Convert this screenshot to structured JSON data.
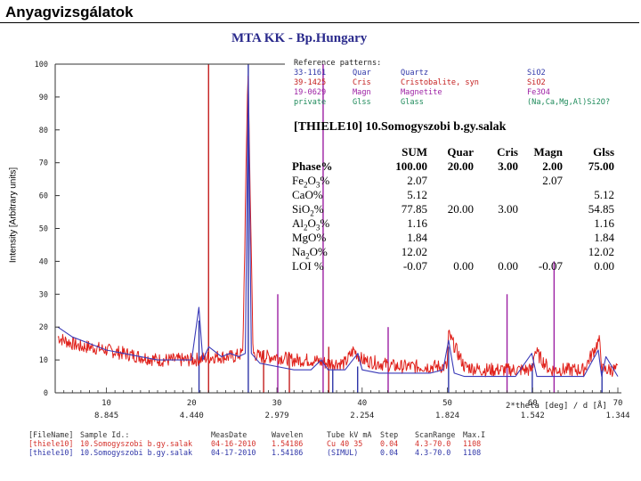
{
  "slide": {
    "title": "Anyagvizsgálatok"
  },
  "instrument": {
    "lab": "MTA KK - Bp.Hungary"
  },
  "chart_data": {
    "type": "line",
    "ylabel": "Intensity [Arbitrary units]",
    "xlabel": "2*theta [deg] / d [Å]",
    "xlim": [
      4.3,
      70
    ],
    "ylim": [
      0,
      100
    ],
    "x_ticks": [
      10,
      20,
      30,
      40,
      50,
      60,
      70
    ],
    "x_ticks_d": [
      "8.845",
      "4.440",
      "2.979",
      "2.254",
      "1.824",
      "1.542",
      "1.344"
    ],
    "y_ticks": [
      0,
      10,
      20,
      30,
      40,
      50,
      60,
      70,
      80,
      90,
      100
    ],
    "grid": false,
    "series": [
      {
        "name": "thiele10",
        "x": [
          4.3,
          5,
          6,
          7,
          8,
          10,
          12,
          14,
          16,
          18,
          20,
          21.5,
          22.5,
          24,
          25,
          26,
          26.6,
          27.2,
          28,
          30,
          32,
          34,
          36,
          38,
          39,
          40,
          42,
          44,
          46,
          48,
          50,
          50.1,
          52,
          54,
          56,
          58,
          60,
          60.2,
          62,
          64,
          66,
          67.8,
          68.2,
          70
        ],
        "y": [
          17,
          16,
          15,
          14,
          14,
          13,
          12,
          11,
          10,
          10,
          10,
          10.5,
          11,
          11,
          11,
          12,
          100,
          12,
          11,
          11,
          10,
          10,
          9,
          9,
          13,
          10,
          9,
          8,
          8,
          8,
          8,
          18,
          8,
          7,
          7,
          7,
          7,
          13,
          7,
          7,
          7,
          16,
          7,
          7
        ]
      },
      {
        "name": "thiele10",
        "x": [
          4.3,
          6,
          8,
          10,
          12,
          14,
          16,
          18,
          20,
          20.85,
          21.3,
          22,
          23.5,
          24.5,
          25.5,
          26.3,
          26.64,
          27,
          28,
          30,
          32,
          34,
          35.2,
          36,
          38,
          39.5,
          40,
          42,
          44,
          46,
          48,
          49.5,
          50.14,
          50.8,
          52,
          54,
          56,
          58,
          59.9,
          60.5,
          62,
          64,
          66,
          67.7,
          68.1,
          68.6,
          70
        ],
        "y": [
          20,
          17,
          15,
          13,
          12,
          11,
          10,
          10,
          10,
          26,
          10,
          14,
          11,
          12,
          11,
          12,
          97,
          12,
          9,
          8,
          7,
          7,
          10,
          7,
          7,
          12,
          7,
          6,
          6,
          6,
          6,
          7,
          16,
          6,
          5,
          5,
          5,
          5,
          12,
          5,
          5,
          5,
          5,
          13,
          5,
          11,
          5
        ]
      }
    ],
    "reference_lines": [
      {
        "code": "33-1161",
        "x": [
          26.64,
          20.86,
          50.14,
          36.55,
          39.47,
          59.96,
          68.14
        ],
        "y": [
          100,
          22,
          14,
          8,
          8,
          9,
          7
        ]
      },
      {
        "code": "39-1425",
        "x": [
          21.98,
          31.46,
          36.08,
          28.44
        ],
        "y": [
          100,
          12,
          14,
          13
        ]
      },
      {
        "code": "19-0629",
        "x": [
          35.42,
          62.52,
          57.0,
          30.1,
          43.05
        ],
        "y": [
          100,
          40,
          30,
          30,
          20
        ]
      }
    ]
  },
  "reference": {
    "heading": "Reference patterns:",
    "rows": [
      {
        "code": "33-1161",
        "abbr": "Quar",
        "name": "Quartz",
        "formula": "SiO2",
        "color": "#2f36a8"
      },
      {
        "code": "39-1425",
        "abbr": "Cris",
        "name": "Cristobalite, syn",
        "formula": "SiO2",
        "color": "#c41e1e"
      },
      {
        "code": "19-0629",
        "abbr": "Magn",
        "name": "Magnetite",
        "formula": "Fe3O4",
        "color": "#9c1fa3"
      },
      {
        "code": "private",
        "abbr": "Glss",
        "name": "Glass",
        "formula": "(Na,Ca,Mg,Al)Si2O?",
        "color": "#1d8a5a"
      }
    ]
  },
  "sample": {
    "title": "[THIELE10]   10.Somogyszobi b.gy.salak"
  },
  "phase_table": {
    "headers": [
      "SUM",
      "Quar",
      "Cris",
      "Magn",
      "Glss"
    ],
    "phase_row": {
      "label": "Phase%",
      "values": [
        "100.00",
        "20.00",
        "3.00",
        "2.00",
        "75.00"
      ]
    },
    "rows": [
      {
        "pre": "Fe",
        "sub1": "2",
        "mid": "O",
        "sub2": "3",
        "post": "%",
        "values": [
          "2.07",
          "",
          "",
          "2.07",
          ""
        ]
      },
      {
        "pre": "CaO%",
        "sub1": "",
        "mid": "",
        "sub2": "",
        "post": "",
        "values": [
          "5.12",
          "",
          "",
          "",
          "5.12"
        ]
      },
      {
        "pre": "SiO",
        "sub1": "2",
        "mid": "%",
        "sub2": "",
        "post": "",
        "values": [
          "77.85",
          "20.00",
          "3.00",
          "",
          "54.85"
        ]
      },
      {
        "pre": "Al",
        "sub1": "2",
        "mid": "O",
        "sub2": "3",
        "post": "%",
        "values": [
          "1.16",
          "",
          "",
          "",
          "1.16"
        ]
      },
      {
        "pre": "MgO%",
        "sub1": "",
        "mid": "",
        "sub2": "",
        "post": "",
        "values": [
          "1.84",
          "",
          "",
          "",
          "1.84"
        ]
      },
      {
        "pre": "Na",
        "sub1": "2",
        "mid": "O%",
        "sub2": "",
        "post": "",
        "values": [
          "12.02",
          "",
          "",
          "",
          "12.02"
        ]
      },
      {
        "pre": "LOI %",
        "sub1": "",
        "mid": "",
        "sub2": "",
        "post": "",
        "values": [
          "-0.07",
          "0.00",
          "0.00",
          "-0.07",
          "0.00"
        ]
      }
    ]
  },
  "file_table": {
    "headers": [
      "[FileName]",
      "Sample Id.:",
      "MeasDate",
      "Wavelen",
      "Tube kV mA",
      "Step",
      "ScanRange",
      "Max.I"
    ],
    "rows": [
      {
        "color": "#d4302a",
        "cells": [
          "[thiele10]",
          "10.Somogyszobi b.gy.salak",
          "04-16-2010",
          "1.54186",
          "Cu 40 35",
          "0.04",
          "4.3-70.0",
          "1108"
        ]
      },
      {
        "color": "#2f36a8",
        "cells": [
          "[thiele10]",
          "10.Somogyszobi b.gy.salak",
          "04-17-2010",
          "1.54186",
          "(SIMUL)",
          "0.04",
          "4.3-70.0",
          "1108"
        ]
      }
    ]
  },
  "colors": {
    "measured": "#e0201a",
    "simulated": "#3a3ab8",
    "cristobalite": "#c41e1e",
    "magnetite": "#9c1fa3",
    "quartz": "#2f36a8"
  }
}
